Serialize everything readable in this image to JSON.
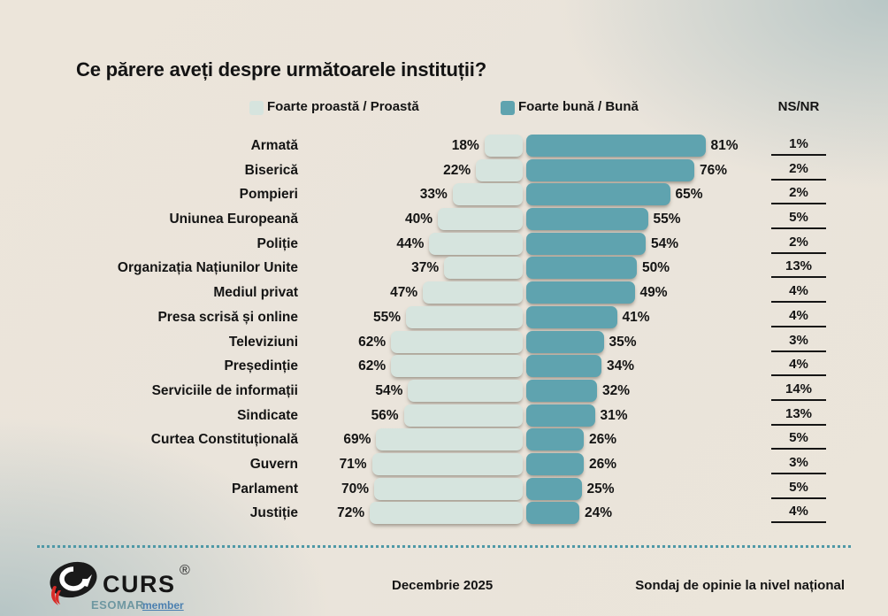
{
  "title": "Ce părere aveți despre următoarele instituții?",
  "legend": {
    "bad_label": "Foarte proastă / Proastă",
    "good_label": "Foarte bună / Bună",
    "nsnr_label": "NS/NR"
  },
  "colors": {
    "bad": "#d6e4de",
    "good": "#5fa3af",
    "text": "#141414",
    "divider_dots": "#4e98a6",
    "logo_red": "#d92b27",
    "logo_black": "#1a1a1a",
    "esomar_teal": "#6e97a1",
    "member_blue": "#4a7fb0"
  },
  "chart_data": {
    "type": "bar",
    "orientation": "horizontal-diverging",
    "unit": "%",
    "title": "Ce părere aveți despre următoarele instituții?",
    "legend_position": "top",
    "categories": [
      "Armată",
      "Biserică",
      "Pompieri",
      "Uniunea Europeană",
      "Poliție",
      "Organizația Națiunilor Unite",
      "Mediul privat",
      "Presa scrisă și online",
      "Televiziuni",
      "Președinție",
      "Serviciile de informații",
      "Sindicate",
      "Curtea Constituțională",
      "Guvern",
      "Parlament",
      "Justiție"
    ],
    "series": [
      {
        "name": "Foarte proastă / Proastă",
        "values": [
          18,
          22,
          33,
          40,
          44,
          37,
          47,
          55,
          62,
          62,
          54,
          56,
          69,
          71,
          70,
          72
        ]
      },
      {
        "name": "Foarte bună / Bună",
        "values": [
          81,
          76,
          65,
          55,
          54,
          50,
          49,
          41,
          35,
          34,
          32,
          31,
          26,
          26,
          25,
          24
        ]
      },
      {
        "name": "NS/NR",
        "values": [
          1,
          2,
          2,
          5,
          2,
          13,
          4,
          4,
          3,
          4,
          14,
          13,
          5,
          3,
          5,
          4
        ]
      }
    ]
  },
  "footer": {
    "logo_text": "CURS",
    "registered_mark": "®",
    "esomar": "ESOMAR",
    "member": "member",
    "date": "Decembrie 2025",
    "scope": "Sondaj de opinie la nivel național"
  }
}
